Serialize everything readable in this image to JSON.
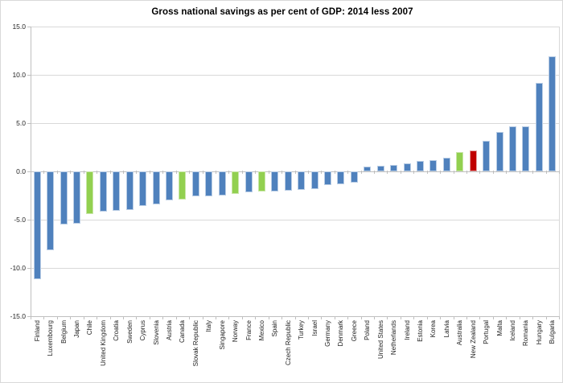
{
  "chart_data": {
    "type": "bar",
    "title": "Gross national savings as per cent of GDP: 2014 less 2007",
    "xlabel": "",
    "ylabel": "",
    "ylim": [
      -15.0,
      15.0
    ],
    "ytick_interval": 5.0,
    "ytick_labels": [
      "15.0",
      "10.0",
      "5.0",
      "0.0",
      "-5.0",
      "-10.0",
      "-15.0"
    ],
    "grid": true,
    "legend": "none",
    "categories": [
      "Finland",
      "Luxembourg",
      "Belgium",
      "Japan",
      "Chile",
      "United Kingdom",
      "Croatia",
      "Sweden",
      "Cyprus",
      "Slovenia",
      "Austria",
      "Canada",
      "Slovak Republic",
      "Italy",
      "Singapore",
      "Norway",
      "France",
      "Mexico",
      "Spain",
      "Czech Republic",
      "Turkey",
      "Israel",
      "Germany",
      "Denmark",
      "Greece",
      "Poland",
      "United States",
      "Netherlands",
      "Ireland",
      "Estonia",
      "Korea",
      "Latvia",
      "Australia",
      "New Zealand",
      "Portugal",
      "Malta",
      "Iceland",
      "Romania",
      "Hungary",
      "Bulgaria"
    ],
    "values": [
      -11.2,
      -8.2,
      -5.5,
      -5.4,
      -4.4,
      -4.2,
      -4.1,
      -4.0,
      -3.6,
      -3.4,
      -3.0,
      -2.9,
      -2.6,
      -2.6,
      -2.5,
      -2.3,
      -2.2,
      -2.1,
      -2.1,
      -2.0,
      -1.9,
      -1.8,
      -1.4,
      -1.3,
      -1.2,
      0.5,
      0.6,
      0.7,
      0.8,
      1.1,
      1.2,
      1.4,
      2.0,
      2.2,
      3.2,
      4.1,
      4.7,
      4.7,
      9.2,
      11.9
    ],
    "bar_color_keys": [
      "blue",
      "blue",
      "blue",
      "blue",
      "green",
      "blue",
      "blue",
      "blue",
      "blue",
      "blue",
      "blue",
      "green",
      "blue",
      "blue",
      "blue",
      "green",
      "blue",
      "green",
      "blue",
      "blue",
      "blue",
      "blue",
      "blue",
      "blue",
      "blue",
      "blue",
      "blue",
      "blue",
      "blue",
      "blue",
      "blue",
      "blue",
      "green",
      "red",
      "blue",
      "blue",
      "blue",
      "blue",
      "blue",
      "blue"
    ],
    "palette": {
      "blue": {
        "fill": "#4F81BD",
        "edge": "#B9CDE5"
      },
      "green": {
        "fill": "#92D050",
        "edge": "#C9E6A8"
      },
      "red": {
        "fill": "#C00000",
        "edge": "#E2A2A2"
      }
    },
    "axis_colors": {
      "gridline": "#D9D9D9",
      "axis_line": "#BFBFBF",
      "tick": "#BFBFBF"
    },
    "highlighted_green": [
      "Chile",
      "Canada",
      "Norway",
      "Mexico",
      "Australia"
    ],
    "highlighted_red": [
      "New Zealand"
    ]
  }
}
